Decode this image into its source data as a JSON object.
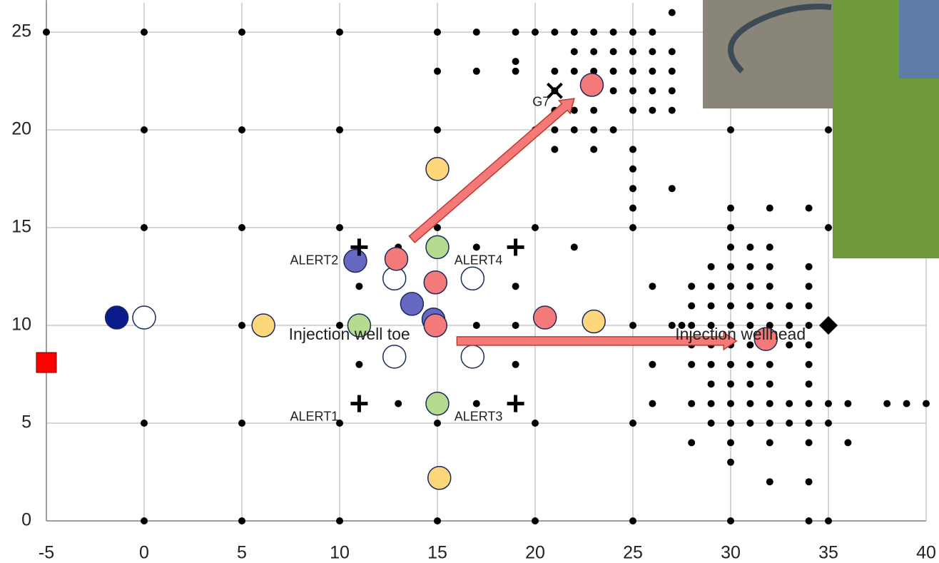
{
  "chart_data": {
    "type": "scatter",
    "xlim": [
      -5,
      40
    ],
    "ylim": [
      0,
      26.5
    ],
    "xticks": [
      -5,
      0,
      5,
      10,
      15,
      20,
      25,
      30,
      35,
      40
    ],
    "yticks": [
      0,
      5,
      10,
      15,
      20,
      25
    ],
    "grid": true,
    "series": [
      {
        "marker": "dot",
        "color": "#000000",
        "x": [
          -5,
          0,
          0,
          0,
          0,
          0,
          5,
          5,
          5,
          5,
          5,
          5,
          10,
          10,
          10,
          10,
          10,
          10,
          11,
          11,
          13,
          13,
          15,
          15,
          15,
          15,
          15,
          15,
          17,
          17,
          17,
          17,
          17,
          19,
          19,
          19,
          19,
          19,
          19,
          20,
          20,
          20,
          20,
          20,
          21,
          21,
          21,
          21,
          21,
          21,
          22,
          22,
          22,
          22,
          22,
          22,
          23,
          23,
          23,
          23,
          23,
          23,
          23,
          24,
          24,
          24,
          24,
          24,
          25,
          25,
          25,
          25,
          25,
          25,
          25,
          25,
          25,
          25,
          25,
          25,
          25,
          26,
          26,
          26,
          26,
          26,
          26,
          26,
          26,
          27,
          27,
          27,
          27,
          27,
          27,
          27,
          27.5,
          28,
          28,
          28,
          28,
          28,
          28,
          28,
          29,
          29,
          29,
          29,
          29,
          29,
          29,
          29,
          29,
          30,
          30,
          30,
          30,
          30,
          30,
          30,
          30,
          30,
          30,
          30,
          30,
          30,
          30,
          30,
          30,
          31,
          31,
          31,
          31,
          31,
          31,
          31,
          31,
          31,
          31,
          32,
          32,
          32,
          32,
          32,
          32,
          32,
          32,
          32,
          32,
          32,
          32,
          32,
          33,
          33,
          33,
          33,
          33,
          34,
          34,
          34,
          34,
          34,
          34,
          34,
          34,
          34,
          34,
          34,
          34,
          34,
          35,
          35,
          35,
          35,
          35,
          36,
          36,
          38,
          39,
          40
        ],
        "y": [
          25,
          25,
          20,
          15,
          5,
          0,
          25,
          20,
          15,
          10,
          5,
          0,
          25,
          20,
          15,
          10,
          5,
          0,
          12,
          8,
          14,
          6,
          25,
          23,
          20,
          15,
          5,
          0,
          25,
          23,
          14,
          10,
          6,
          25,
          23.5,
          23,
          12,
          10,
          8,
          25,
          20,
          15,
          5,
          0,
          25,
          23,
          22,
          21,
          20,
          19,
          25,
          24,
          23,
          21,
          20,
          14,
          25,
          24,
          23,
          22,
          21,
          20,
          19,
          25,
          24,
          23,
          22,
          20,
          25,
          24,
          23,
          22,
          21,
          19,
          18,
          17,
          16,
          15,
          10,
          5,
          0,
          25,
          24,
          23,
          22,
          21,
          12,
          8,
          6,
          26,
          24,
          23,
          22,
          21,
          17,
          10,
          10,
          12,
          11,
          10,
          9,
          8,
          6,
          4,
          13,
          12,
          11,
          10,
          9,
          8,
          7,
          6,
          5,
          20,
          16,
          15,
          14,
          13,
          12,
          11,
          10,
          9,
          8,
          7,
          6,
          5,
          4,
          3,
          0,
          14,
          13,
          12,
          11,
          10,
          9,
          8,
          7,
          6,
          5,
          16,
          14,
          13,
          12,
          11,
          10,
          9,
          8,
          7,
          6,
          5,
          4,
          2,
          11,
          10,
          9,
          6,
          5,
          16,
          13,
          12,
          11,
          10,
          9,
          8,
          7,
          6,
          5,
          4,
          2,
          0,
          20,
          15,
          6,
          5,
          0,
          6,
          4,
          6,
          6,
          6
        ]
      },
      {
        "marker": "circle",
        "color": "#0b1a8a",
        "x": [
          -1.4
        ],
        "y": [
          10.4
        ]
      },
      {
        "marker": "circle",
        "color": "#ffffff",
        "x": [
          0,
          12.8,
          16.8,
          12.8,
          16.8
        ],
        "y": [
          10.4,
          12.4,
          12.4,
          8.4,
          8.4
        ]
      },
      {
        "marker": "circle",
        "color": "#fdd77a",
        "x": [
          6.1,
          15,
          23,
          15.1
        ],
        "y": [
          10,
          18,
          10.2,
          2.2
        ]
      },
      {
        "marker": "circle",
        "color": "#b5dc8e",
        "x": [
          11,
          15,
          15
        ],
        "y": [
          10,
          14,
          6
        ]
      },
      {
        "marker": "circle",
        "color": "#6668c2",
        "x": [
          10.8,
          13.7,
          14.8
        ],
        "y": [
          13.3,
          11.1,
          10.3
        ]
      },
      {
        "marker": "circle",
        "color": "#f47a7a",
        "x": [
          12.9,
          14.9,
          14.9,
          20.5,
          22.9,
          31.8
        ],
        "y": [
          13.4,
          12.2,
          10,
          10.4,
          22.3,
          9.3
        ]
      },
      {
        "marker": "square",
        "color": "#ff0000",
        "x": [
          -5
        ],
        "y": [
          8.1
        ]
      },
      {
        "marker": "plus",
        "color": "#000000",
        "x": [
          11,
          19,
          11,
          19
        ],
        "y": [
          14,
          14,
          6,
          6
        ]
      },
      {
        "marker": "cross",
        "color": "#000000",
        "x": [
          21
        ],
        "y": [
          22
        ]
      },
      {
        "marker": "diamond",
        "color": "#000000",
        "x": [
          35
        ],
        "y": [
          10
        ]
      }
    ],
    "arrows": [
      {
        "color": "#f47a7a",
        "x": [
          13.7,
          22
        ],
        "y": [
          14.4,
          21.6
        ]
      },
      {
        "color": "#f47a7a",
        "x": [
          16,
          30.3
        ],
        "y": [
          9.2,
          9.2
        ]
      }
    ],
    "annotations": [
      {
        "text": "ALERT1",
        "x": 8.7,
        "y": 5.3
      },
      {
        "text": "ALERT2",
        "x": 8.7,
        "y": 13.3
      },
      {
        "text": "ALERT3",
        "x": 17.1,
        "y": 5.3
      },
      {
        "text": "ALERT4",
        "x": 17.1,
        "y": 13.3
      },
      {
        "text": "G7",
        "x": 20.3,
        "y": 21.4
      },
      {
        "text": "Injection well toe",
        "x": 10.5,
        "y": 9.5
      },
      {
        "text": "Injection wellhead",
        "x": 30.5,
        "y": 9.5
      }
    ]
  }
}
